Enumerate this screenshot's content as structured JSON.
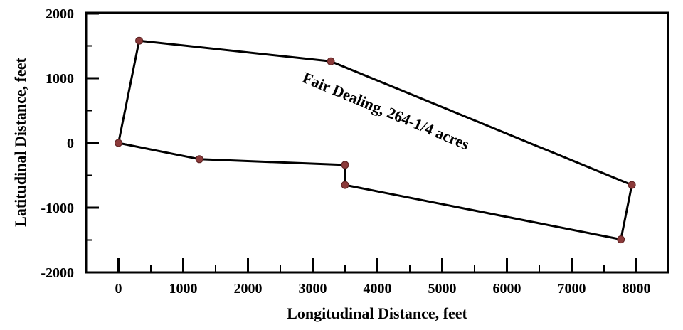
{
  "chart_data": {
    "type": "line",
    "title": "",
    "xlabel": "Longitudinal Distance, feet",
    "ylabel": "Latitudinal Distance, feet",
    "xlim": [
      -500,
      8500
    ],
    "ylim": [
      -2000,
      2000
    ],
    "xticks": [
      0,
      1000,
      2000,
      3000,
      4000,
      5000,
      6000,
      7000,
      8000
    ],
    "yticks": [
      -2000,
      -1000,
      0,
      1000,
      2000
    ],
    "grid": false,
    "closed": true,
    "colors": {
      "line": "#000000",
      "marker": "#8b3a3a"
    },
    "series": [
      {
        "x": [
          0,
          320,
          3280,
          7930,
          7760,
          3500,
          3500,
          1250,
          0
        ],
        "y": [
          0,
          1580,
          1260,
          -650,
          -1490,
          -650,
          -340,
          -250,
          0
        ]
      }
    ],
    "annotations": [
      {
        "text": "Fair Dealing, 264-1/4 acres",
        "x": 4100,
        "y": 420
      }
    ]
  }
}
